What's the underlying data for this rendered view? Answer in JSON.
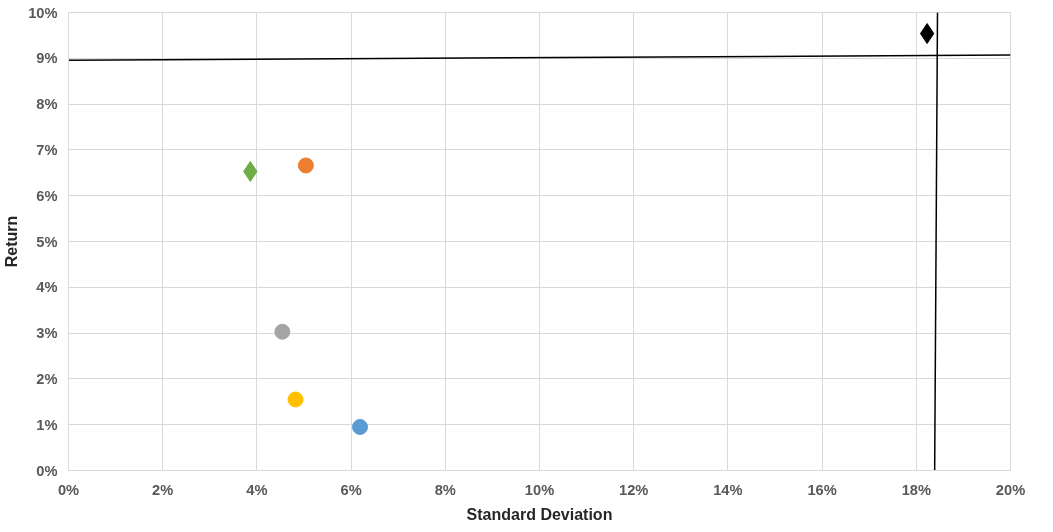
{
  "chart_data": {
    "type": "scatter",
    "xlabel": "Standard Deviation",
    "ylabel": "Return",
    "xlim": [
      0,
      20
    ],
    "ylim": [
      0,
      10
    ],
    "xticks": [
      {
        "value": 0,
        "label": "0%"
      },
      {
        "value": 2,
        "label": "2%"
      },
      {
        "value": 4,
        "label": "4%"
      },
      {
        "value": 6,
        "label": "6%"
      },
      {
        "value": 8,
        "label": "8%"
      },
      {
        "value": 10,
        "label": "10%"
      },
      {
        "value": 12,
        "label": "12%"
      },
      {
        "value": 14,
        "label": "14%"
      },
      {
        "value": 16,
        "label": "16%"
      },
      {
        "value": 18,
        "label": "18%"
      },
      {
        "value": 20,
        "label": "20%"
      }
    ],
    "yticks": [
      {
        "value": 0,
        "label": "0%"
      },
      {
        "value": 1,
        "label": "1%"
      },
      {
        "value": 2,
        "label": "2%"
      },
      {
        "value": 3,
        "label": "3%"
      },
      {
        "value": 4,
        "label": "4%"
      },
      {
        "value": 5,
        "label": "5%"
      },
      {
        "value": 6,
        "label": "6%"
      },
      {
        "value": 7,
        "label": "7%"
      },
      {
        "value": 8,
        "label": "8%"
      },
      {
        "value": 9,
        "label": "9%"
      },
      {
        "value": 10,
        "label": "10%"
      }
    ],
    "grid": true,
    "series": [
      {
        "marker": "diamond",
        "color": "#000000",
        "x": [
          18.23
        ],
        "values": [
          9.54
        ]
      },
      {
        "marker": "diamond",
        "color": "#70ad47",
        "x": [
          3.86
        ],
        "values": [
          6.53
        ]
      },
      {
        "marker": "circle",
        "color": "#ed7d31",
        "x": [
          5.04
        ],
        "values": [
          6.66
        ]
      },
      {
        "marker": "circle",
        "color": "#a5a5a5",
        "x": [
          4.54
        ],
        "values": [
          3.03
        ]
      },
      {
        "marker": "circle",
        "color": "#ffc000",
        "x": [
          4.82
        ],
        "values": [
          1.55
        ]
      },
      {
        "marker": "circle",
        "color": "#5b9bd5",
        "x": [
          6.19
        ],
        "values": [
          0.95
        ]
      },
      {
        "type": "line",
        "color": "#000000",
        "x": [
          0,
          20
        ],
        "values": [
          8.96,
          9.07
        ]
      },
      {
        "type": "line",
        "color": "#000000",
        "x": [
          18.45,
          18.39
        ],
        "values": [
          10,
          0
        ]
      }
    ]
  }
}
